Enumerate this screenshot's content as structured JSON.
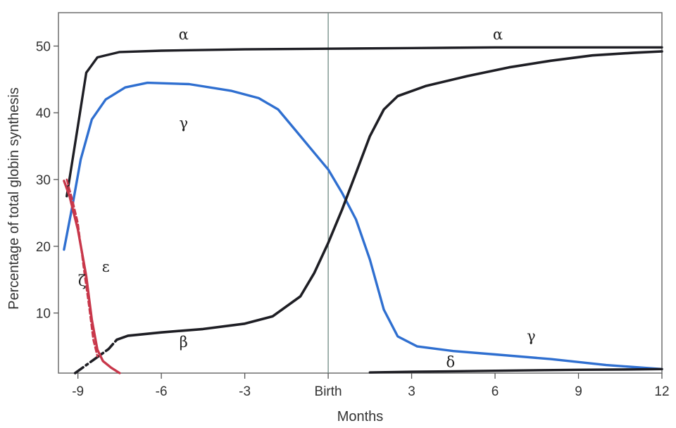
{
  "chart_data": {
    "type": "line",
    "xlabel": "Months",
    "ylabel": "Percentage of total globin synthesis",
    "xlim": [
      -9.7,
      12
    ],
    "ylim": [
      1,
      55
    ],
    "x_ticks": [
      {
        "value": -9,
        "label": "-9"
      },
      {
        "value": -6,
        "label": "-6"
      },
      {
        "value": -3,
        "label": "-3"
      },
      {
        "value": 0,
        "label": "Birth"
      },
      {
        "value": 3,
        "label": "3"
      },
      {
        "value": 6,
        "label": "6"
      },
      {
        "value": 9,
        "label": "9"
      },
      {
        "value": 12,
        "label": "12"
      }
    ],
    "y_ticks": [
      {
        "value": 10,
        "label": "10"
      },
      {
        "value": 20,
        "label": "20"
      },
      {
        "value": 30,
        "label": "30"
      },
      {
        "value": 40,
        "label": "40"
      },
      {
        "value": 50,
        "label": "50"
      }
    ],
    "reference_line_x": 0,
    "grid": false,
    "series": [
      {
        "name": "α",
        "color": "#1e1e24",
        "style": "solid",
        "points": [
          [
            -9.4,
            27.5
          ],
          [
            -9.0,
            38.0
          ],
          [
            -8.7,
            46.0
          ],
          [
            -8.3,
            48.3
          ],
          [
            -7.5,
            49.1
          ],
          [
            -6.0,
            49.3
          ],
          [
            -3.0,
            49.5
          ],
          [
            0.0,
            49.6
          ],
          [
            3.0,
            49.7
          ],
          [
            6.0,
            49.8
          ],
          [
            9.0,
            49.8
          ],
          [
            12.0,
            49.8
          ]
        ]
      },
      {
        "name": "γ",
        "color": "#2f6fd0",
        "style": "solid",
        "points": [
          [
            -9.5,
            19.5
          ],
          [
            -9.2,
            26.0
          ],
          [
            -8.9,
            33.0
          ],
          [
            -8.5,
            39.0
          ],
          [
            -8.0,
            42.0
          ],
          [
            -7.3,
            43.8
          ],
          [
            -6.5,
            44.5
          ],
          [
            -5.0,
            44.3
          ],
          [
            -3.5,
            43.3
          ],
          [
            -2.5,
            42.2
          ],
          [
            -1.8,
            40.5
          ],
          [
            -1.2,
            37.5
          ],
          [
            -0.5,
            34.0
          ],
          [
            0.0,
            31.5
          ],
          [
            0.5,
            28.0
          ],
          [
            1.0,
            24.0
          ],
          [
            1.5,
            18.0
          ],
          [
            2.0,
            10.5
          ],
          [
            2.5,
            6.5
          ],
          [
            3.2,
            5.0
          ],
          [
            4.5,
            4.3
          ],
          [
            6.0,
            3.8
          ],
          [
            8.0,
            3.1
          ],
          [
            10.0,
            2.2
          ],
          [
            12.0,
            1.6
          ]
        ]
      },
      {
        "name": "β",
        "color": "#1e1e24",
        "style": "mixed",
        "points": [
          [
            -9.1,
            1.0
          ],
          [
            -8.5,
            2.8
          ],
          [
            -7.9,
            4.6
          ],
          [
            -7.6,
            6.0
          ],
          [
            -7.2,
            6.6
          ],
          [
            -6.0,
            7.1
          ],
          [
            -4.5,
            7.6
          ],
          [
            -3.0,
            8.4
          ],
          [
            -2.0,
            9.5
          ],
          [
            -1.0,
            12.5
          ],
          [
            -0.5,
            16.0
          ],
          [
            0.0,
            20.5
          ],
          [
            0.5,
            25.5
          ],
          [
            1.0,
            31.0
          ],
          [
            1.5,
            36.5
          ],
          [
            2.0,
            40.5
          ],
          [
            2.5,
            42.5
          ],
          [
            3.5,
            44.0
          ],
          [
            5.0,
            45.5
          ],
          [
            6.5,
            46.8
          ],
          [
            8.0,
            47.8
          ],
          [
            9.5,
            48.6
          ],
          [
            11.0,
            49.0
          ],
          [
            12.0,
            49.2
          ]
        ]
      },
      {
        "name": "ε",
        "color": "#c8374a",
        "style": "solid",
        "points": [
          [
            -9.5,
            29.8
          ],
          [
            -9.3,
            27.5
          ],
          [
            -9.0,
            22.5
          ],
          [
            -8.7,
            15.5
          ],
          [
            -8.5,
            9.0
          ],
          [
            -8.3,
            4.5
          ],
          [
            -8.1,
            2.8
          ],
          [
            -7.8,
            1.8
          ],
          [
            -7.5,
            1.0
          ]
        ]
      },
      {
        "name": "ζ",
        "color": "#c8374a",
        "style": "dashed",
        "points": [
          [
            -9.4,
            30.0
          ],
          [
            -9.2,
            27.0
          ],
          [
            -9.0,
            23.5
          ],
          [
            -8.8,
            17.0
          ],
          [
            -8.6,
            11.0
          ],
          [
            -8.45,
            6.0
          ],
          [
            -8.3,
            3.5
          ]
        ]
      },
      {
        "name": "δ",
        "color": "#1e1e24",
        "style": "solid",
        "points": [
          [
            1.5,
            1.1
          ],
          [
            3.0,
            1.2
          ],
          [
            5.0,
            1.3
          ],
          [
            7.0,
            1.4
          ],
          [
            9.0,
            1.5
          ],
          [
            11.0,
            1.55
          ],
          [
            12.0,
            1.6
          ]
        ]
      }
    ],
    "curve_labels": [
      {
        "text": "α",
        "x": -5.2,
        "y": 51.0
      },
      {
        "text": "α",
        "x": 6.1,
        "y": 51.0
      },
      {
        "text": "γ",
        "x": -5.2,
        "y": 37.7
      },
      {
        "text": "γ",
        "x": 7.3,
        "y": 5.8
      },
      {
        "text": "β",
        "x": -5.2,
        "y": 4.9
      },
      {
        "text": "δ",
        "x": 4.4,
        "y": 1.9
      },
      {
        "text": "ε",
        "x": -8.0,
        "y": 16.2
      },
      {
        "text": "ζ",
        "x": -8.85,
        "y": 14.1
      }
    ]
  }
}
